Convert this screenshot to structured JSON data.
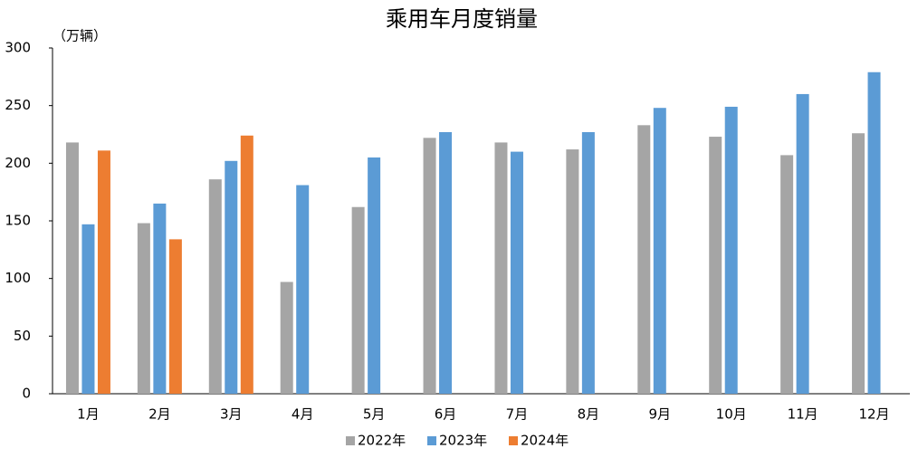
{
  "chart_data": {
    "type": "bar",
    "title": "乘用车月度销量",
    "y_label": "（万辆）",
    "categories": [
      "1月",
      "2月",
      "3月",
      "4月",
      "5月",
      "6月",
      "7月",
      "8月",
      "9月",
      "10月",
      "11月",
      "12月"
    ],
    "series": [
      {
        "name": "2022年",
        "color": "#a5a5a5",
        "values": [
          218,
          148,
          186,
          97,
          162,
          222,
          218,
          212,
          233,
          223,
          207,
          226
        ]
      },
      {
        "name": "2023年",
        "color": "#5b9bd5",
        "values": [
          147,
          165,
          202,
          181,
          205,
          227,
          210,
          227,
          248,
          249,
          260,
          279
        ]
      },
      {
        "name": "2024年",
        "color": "#ed7d31",
        "values": [
          211,
          134,
          224,
          null,
          null,
          null,
          null,
          null,
          null,
          null,
          null,
          null
        ]
      }
    ],
    "ylim": [
      0,
      300
    ],
    "yticks": [
      0,
      50,
      100,
      150,
      200,
      250,
      300
    ],
    "grid": false,
    "legend": "bottom"
  }
}
